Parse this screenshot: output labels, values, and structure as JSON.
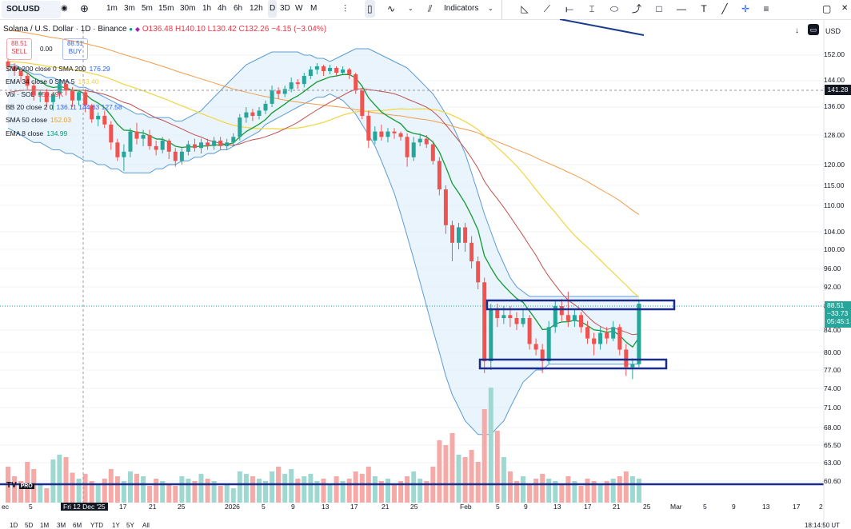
{
  "toolbar": {
    "symbol": "SOLUSD",
    "intervals": [
      "1m",
      "3m",
      "5m",
      "15m",
      "30m",
      "1h",
      "4h",
      "6h",
      "12h",
      "D",
      "3D",
      "W",
      "M"
    ],
    "active_interval": "D",
    "indicators_label": "Indicators"
  },
  "header": {
    "title": "Solana / U.S. Dollar · 1D · Binance",
    "ohlc": "O136.48 H140.10 L130.42 C132.26 −4.15 (−3.04%)",
    "sell_price": "88.51",
    "sell_label": "SELL",
    "spread": "0.00",
    "buy_price": "88.51",
    "buy_label": "BUY",
    "currency": "USD"
  },
  "indicators": [
    {
      "label": "SMA 200 close 0 SMA 200",
      "value": "176.29",
      "color": "#2962ff"
    },
    {
      "label": "EMA 34 close 0 SMA 5",
      "value": "143.40",
      "color": "#f7d63f"
    },
    {
      "label": "Vol · SOL",
      "value": "159.49K",
      "color": "#f23645"
    },
    {
      "label": "BB 20 close 2 0",
      "value": "136.11  144.63  127.58",
      "color": "#2962ff"
    },
    {
      "label": "SMA 50 close",
      "value": "152.03",
      "color": "#ff9800"
    },
    {
      "label": "EMA 8 close",
      "value": "134.99",
      "color": "#089981"
    }
  ],
  "price_scale": [
    "152.00",
    "144.00",
    "136.00",
    "128.00",
    "120.00",
    "115.00",
    "110.00",
    "104.00",
    "100.00",
    "96.00",
    "92.00",
    "88.00",
    "84.00",
    "80.00",
    "77.00",
    "74.00",
    "71.00",
    "68.00",
    "65.50",
    "63.00",
    "60.60"
  ],
  "price_labels": {
    "crosshair": "141.28",
    "last": "88.51",
    "change": "−33.73",
    "countdown": "05:45:1"
  },
  "time_axis": [
    "ec",
    "5",
    "Fri 12 Dec '25",
    "17",
    "21",
    "25",
    "2026",
    "5",
    "9",
    "13",
    "17",
    "21",
    "25",
    "Feb",
    "5",
    "9",
    "13",
    "17",
    "21",
    "25",
    "Mar",
    "5",
    "9",
    "13",
    "17",
    "2"
  ],
  "bottom_bar": {
    "ranges": [
      "1D",
      "5D",
      "1M",
      "3M",
      "6M",
      "YTD",
      "1Y",
      "5Y",
      "All"
    ],
    "clock": "18:14:50 UT"
  },
  "logo": "TV PRO",
  "colors": {
    "up": "#26a69a",
    "down": "#ef5350",
    "bb": "#5b9bd5",
    "box": "#1a2d8a"
  },
  "chart_data": {
    "type": "candlestick",
    "title": "Solana / U.S. Dollar · 1D · Binance",
    "ylim": [
      60,
      154
    ],
    "candles": [
      {
        "o": 150.0,
        "c": 148.5,
        "h": 151.0,
        "l": 147.0
      },
      {
        "o": 148.5,
        "c": 147.0,
        "h": 149.5,
        "l": 145.5
      },
      {
        "o": 147.0,
        "c": 145.5,
        "h": 148.0,
        "l": 143.5
      },
      {
        "o": 145.5,
        "c": 142.5,
        "h": 146.5,
        "l": 141.5
      },
      {
        "o": 142.5,
        "c": 139.5,
        "h": 143.5,
        "l": 138.0
      },
      {
        "o": 139.5,
        "c": 140.5,
        "h": 141.0,
        "l": 137.5
      },
      {
        "o": 140.5,
        "c": 137.5,
        "h": 141.5,
        "l": 136.0
      },
      {
        "o": 137.5,
        "c": 140.0,
        "h": 140.5,
        "l": 135.0
      },
      {
        "o": 140.0,
        "c": 143.0,
        "h": 144.5,
        "l": 138.5
      },
      {
        "o": 143.0,
        "c": 141.0,
        "h": 144.0,
        "l": 139.5
      },
      {
        "o": 141.0,
        "c": 138.0,
        "h": 142.0,
        "l": 136.0
      },
      {
        "o": 138.0,
        "c": 140.5,
        "h": 141.0,
        "l": 136.5
      },
      {
        "o": 140.5,
        "c": 136.5,
        "h": 141.5,
        "l": 134.5
      },
      {
        "o": 136.5,
        "c": 132.5,
        "h": 137.0,
        "l": 131.5
      },
      {
        "o": 132.5,
        "c": 133.5,
        "h": 134.5,
        "l": 130.5
      },
      {
        "o": 133.5,
        "c": 131.0,
        "h": 135.0,
        "l": 130.0
      },
      {
        "o": 131.0,
        "c": 126.0,
        "h": 132.0,
        "l": 124.0
      },
      {
        "o": 126.0,
        "c": 122.0,
        "h": 127.0,
        "l": 121.0
      },
      {
        "o": 122.0,
        "c": 123.5,
        "h": 125.5,
        "l": 118.5
      },
      {
        "o": 123.5,
        "c": 129.0,
        "h": 130.0,
        "l": 122.0
      },
      {
        "o": 129.0,
        "c": 127.0,
        "h": 131.5,
        "l": 125.5
      },
      {
        "o": 127.0,
        "c": 128.0,
        "h": 129.5,
        "l": 125.0
      },
      {
        "o": 128.0,
        "c": 125.0,
        "h": 129.5,
        "l": 124.0
      },
      {
        "o": 125.0,
        "c": 124.0,
        "h": 126.5,
        "l": 122.5
      },
      {
        "o": 124.0,
        "c": 126.5,
        "h": 127.5,
        "l": 123.0
      },
      {
        "o": 126.5,
        "c": 123.5,
        "h": 127.0,
        "l": 121.5
      },
      {
        "o": 123.5,
        "c": 121.0,
        "h": 124.5,
        "l": 119.5
      },
      {
        "o": 121.0,
        "c": 123.5,
        "h": 124.5,
        "l": 120.0
      },
      {
        "o": 123.5,
        "c": 125.5,
        "h": 126.5,
        "l": 122.5
      },
      {
        "o": 125.5,
        "c": 124.5,
        "h": 127.0,
        "l": 123.5
      },
      {
        "o": 124.5,
        "c": 126.0,
        "h": 127.0,
        "l": 123.0
      },
      {
        "o": 126.0,
        "c": 125.0,
        "h": 127.0,
        "l": 124.0
      },
      {
        "o": 125.0,
        "c": 126.5,
        "h": 127.5,
        "l": 124.0
      },
      {
        "o": 126.5,
        "c": 125.0,
        "h": 127.5,
        "l": 124.0
      },
      {
        "o": 125.0,
        "c": 126.0,
        "h": 127.0,
        "l": 124.0
      },
      {
        "o": 126.0,
        "c": 127.5,
        "h": 128.5,
        "l": 125.0
      },
      {
        "o": 127.5,
        "c": 133.0,
        "h": 134.0,
        "l": 126.5
      },
      {
        "o": 133.0,
        "c": 134.5,
        "h": 136.0,
        "l": 131.5
      },
      {
        "o": 134.5,
        "c": 133.5,
        "h": 135.5,
        "l": 132.0
      },
      {
        "o": 133.5,
        "c": 135.0,
        "h": 136.0,
        "l": 132.5
      },
      {
        "o": 135.0,
        "c": 137.0,
        "h": 138.0,
        "l": 134.0
      },
      {
        "o": 137.0,
        "c": 141.0,
        "h": 142.5,
        "l": 136.0
      },
      {
        "o": 141.0,
        "c": 140.0,
        "h": 142.0,
        "l": 138.5
      },
      {
        "o": 140.0,
        "c": 141.5,
        "h": 142.5,
        "l": 139.0
      },
      {
        "o": 141.5,
        "c": 143.5,
        "h": 145.0,
        "l": 140.5
      },
      {
        "o": 143.5,
        "c": 143.0,
        "h": 144.5,
        "l": 141.5
      },
      {
        "o": 143.0,
        "c": 145.5,
        "h": 146.5,
        "l": 142.0
      },
      {
        "o": 145.5,
        "c": 147.5,
        "h": 148.5,
        "l": 144.5
      },
      {
        "o": 147.5,
        "c": 148.5,
        "h": 149.5,
        "l": 146.0
      },
      {
        "o": 148.5,
        "c": 147.0,
        "h": 149.0,
        "l": 145.5
      },
      {
        "o": 147.0,
        "c": 148.0,
        "h": 149.0,
        "l": 146.0
      },
      {
        "o": 148.0,
        "c": 146.5,
        "h": 148.5,
        "l": 145.5
      },
      {
        "o": 146.5,
        "c": 147.5,
        "h": 148.5,
        "l": 146.0
      },
      {
        "o": 147.5,
        "c": 146.0,
        "h": 148.0,
        "l": 144.5
      },
      {
        "o": 146.0,
        "c": 141.0,
        "h": 146.5,
        "l": 140.0
      },
      {
        "o": 141.0,
        "c": 133.5,
        "h": 141.5,
        "l": 132.5
      },
      {
        "o": 133.5,
        "c": 126.5,
        "h": 135.0,
        "l": 124.5
      },
      {
        "o": 126.5,
        "c": 129.0,
        "h": 130.5,
        "l": 125.5
      },
      {
        "o": 129.0,
        "c": 127.5,
        "h": 131.0,
        "l": 126.5
      },
      {
        "o": 127.5,
        "c": 129.0,
        "h": 130.0,
        "l": 126.0
      },
      {
        "o": 129.0,
        "c": 128.5,
        "h": 130.0,
        "l": 127.0
      },
      {
        "o": 128.5,
        "c": 127.5,
        "h": 129.0,
        "l": 126.5
      },
      {
        "o": 127.5,
        "c": 122.0,
        "h": 128.5,
        "l": 119.5
      },
      {
        "o": 122.0,
        "c": 126.0,
        "h": 127.5,
        "l": 121.0
      },
      {
        "o": 126.0,
        "c": 127.0,
        "h": 128.5,
        "l": 125.0
      },
      {
        "o": 127.0,
        "c": 125.5,
        "h": 128.0,
        "l": 124.5
      },
      {
        "o": 125.5,
        "c": 121.0,
        "h": 126.5,
        "l": 120.0
      },
      {
        "o": 121.0,
        "c": 114.0,
        "h": 122.0,
        "l": 112.5
      },
      {
        "o": 114.0,
        "c": 105.5,
        "h": 115.0,
        "l": 103.5
      },
      {
        "o": 105.5,
        "c": 101.5,
        "h": 106.5,
        "l": 97.5
      },
      {
        "o": 101.5,
        "c": 105.0,
        "h": 106.0,
        "l": 100.0
      },
      {
        "o": 105.0,
        "c": 101.5,
        "h": 106.0,
        "l": 99.5
      },
      {
        "o": 101.5,
        "c": 97.5,
        "h": 103.0,
        "l": 96.0
      },
      {
        "o": 97.5,
        "c": 93.0,
        "h": 98.5,
        "l": 91.5
      },
      {
        "o": 93.0,
        "c": 78.5,
        "h": 94.0,
        "l": 76.5
      },
      {
        "o": 78.5,
        "c": 87.5,
        "h": 88.5,
        "l": 77.0
      },
      {
        "o": 87.5,
        "c": 86.0,
        "h": 88.5,
        "l": 84.5
      },
      {
        "o": 86.0,
        "c": 86.5,
        "h": 88.0,
        "l": 85.0
      },
      {
        "o": 86.5,
        "c": 86.0,
        "h": 88.0,
        "l": 84.5
      },
      {
        "o": 86.0,
        "c": 85.0,
        "h": 87.0,
        "l": 84.0
      },
      {
        "o": 85.0,
        "c": 86.0,
        "h": 87.5,
        "l": 84.5
      },
      {
        "o": 86.0,
        "c": 81.5,
        "h": 86.5,
        "l": 80.5
      },
      {
        "o": 81.5,
        "c": 80.5,
        "h": 82.5,
        "l": 79.5
      },
      {
        "o": 80.5,
        "c": 78.5,
        "h": 81.5,
        "l": 76.5
      },
      {
        "o": 78.5,
        "c": 84.5,
        "h": 85.5,
        "l": 78.0
      },
      {
        "o": 84.5,
        "c": 88.0,
        "h": 89.0,
        "l": 83.5
      },
      {
        "o": 88.0,
        "c": 86.5,
        "h": 89.5,
        "l": 85.5
      },
      {
        "o": 86.5,
        "c": 85.5,
        "h": 91.0,
        "l": 84.5
      },
      {
        "o": 85.5,
        "c": 86.5,
        "h": 87.5,
        "l": 84.5
      },
      {
        "o": 86.5,
        "c": 84.5,
        "h": 87.0,
        "l": 83.5
      },
      {
        "o": 84.5,
        "c": 82.5,
        "h": 85.5,
        "l": 81.5
      },
      {
        "o": 82.5,
        "c": 81.5,
        "h": 83.5,
        "l": 79.5
      },
      {
        "o": 81.5,
        "c": 83.5,
        "h": 84.5,
        "l": 80.5
      },
      {
        "o": 83.5,
        "c": 82.5,
        "h": 84.5,
        "l": 81.5
      },
      {
        "o": 82.5,
        "c": 84.5,
        "h": 85.5,
        "l": 82.0
      },
      {
        "o": 84.5,
        "c": 80.5,
        "h": 85.0,
        "l": 79.5
      },
      {
        "o": 80.5,
        "c": 77.5,
        "h": 81.5,
        "l": 76.0
      },
      {
        "o": 77.5,
        "c": 78.0,
        "h": 79.0,
        "l": 75.5
      },
      {
        "o": 78.0,
        "c": 88.5,
        "h": 89.0,
        "l": 77.5
      }
    ],
    "volume": [
      30,
      22,
      18,
      34,
      28,
      15,
      12,
      36,
      40,
      38,
      25,
      20,
      24,
      18,
      16,
      20,
      28,
      22,
      18,
      26,
      24,
      22,
      14,
      20,
      18,
      16,
      14,
      22,
      20,
      18,
      24,
      20,
      18,
      14,
      16,
      12,
      26,
      24,
      22,
      20,
      18,
      26,
      30,
      24,
      28,
      20,
      22,
      24,
      18,
      20,
      16,
      22,
      18,
      20,
      26,
      24,
      30,
      22,
      18,
      20,
      16,
      18,
      22,
      26,
      20,
      18,
      30,
      52,
      48,
      58,
      40,
      38,
      44,
      34,
      78,
      96,
      60,
      38,
      26,
      18,
      22,
      16,
      20,
      24,
      20,
      18,
      16,
      22,
      18,
      14,
      20,
      18,
      16,
      18,
      20,
      22,
      26,
      22,
      20
    ],
    "bollinger": {
      "upper": [
        149,
        149,
        148,
        147,
        146,
        146,
        145,
        145,
        144,
        144,
        143,
        142,
        142,
        141,
        140,
        139,
        138,
        137,
        136,
        135,
        134,
        134,
        133,
        133,
        133,
        133,
        132,
        132,
        133,
        134,
        135,
        137,
        139,
        141,
        143,
        145,
        147,
        149,
        150,
        151,
        152,
        153,
        153,
        153,
        153,
        153,
        152,
        152,
        151,
        151,
        150,
        151,
        152,
        153,
        154,
        154,
        154,
        153,
        152,
        151,
        150,
        149,
        148,
        146,
        144,
        142,
        140,
        137,
        134,
        131,
        127,
        123,
        118,
        113,
        108,
        104,
        100,
        97,
        94,
        92,
        91,
        90,
        90,
        90,
        90,
        90,
        90,
        90,
        90,
        90,
        90,
        90,
        90,
        90,
        90,
        90,
        90,
        90,
        90
      ],
      "lower": [
        130,
        129,
        128,
        127,
        126,
        126,
        125,
        124,
        124,
        123,
        123,
        122,
        121,
        121,
        120,
        120,
        119,
        119,
        118,
        118,
        118,
        118,
        118,
        119,
        119,
        120,
        120,
        121,
        121,
        122,
        122,
        123,
        123,
        124,
        124,
        125,
        126,
        127,
        128,
        129,
        131,
        132,
        133,
        134,
        135,
        136,
        137,
        138,
        139,
        139,
        140,
        139,
        138,
        136,
        134,
        131,
        128,
        125,
        121,
        117,
        113,
        108,
        103,
        98,
        93,
        88,
        84,
        80,
        76,
        73,
        71,
        69,
        68,
        67,
        67,
        67,
        68,
        69,
        71,
        73,
        75,
        76,
        77,
        77,
        78,
        78,
        78,
        78,
        78,
        78,
        78,
        78,
        78,
        78,
        78,
        78,
        78,
        78,
        78
      ]
    }
  }
}
